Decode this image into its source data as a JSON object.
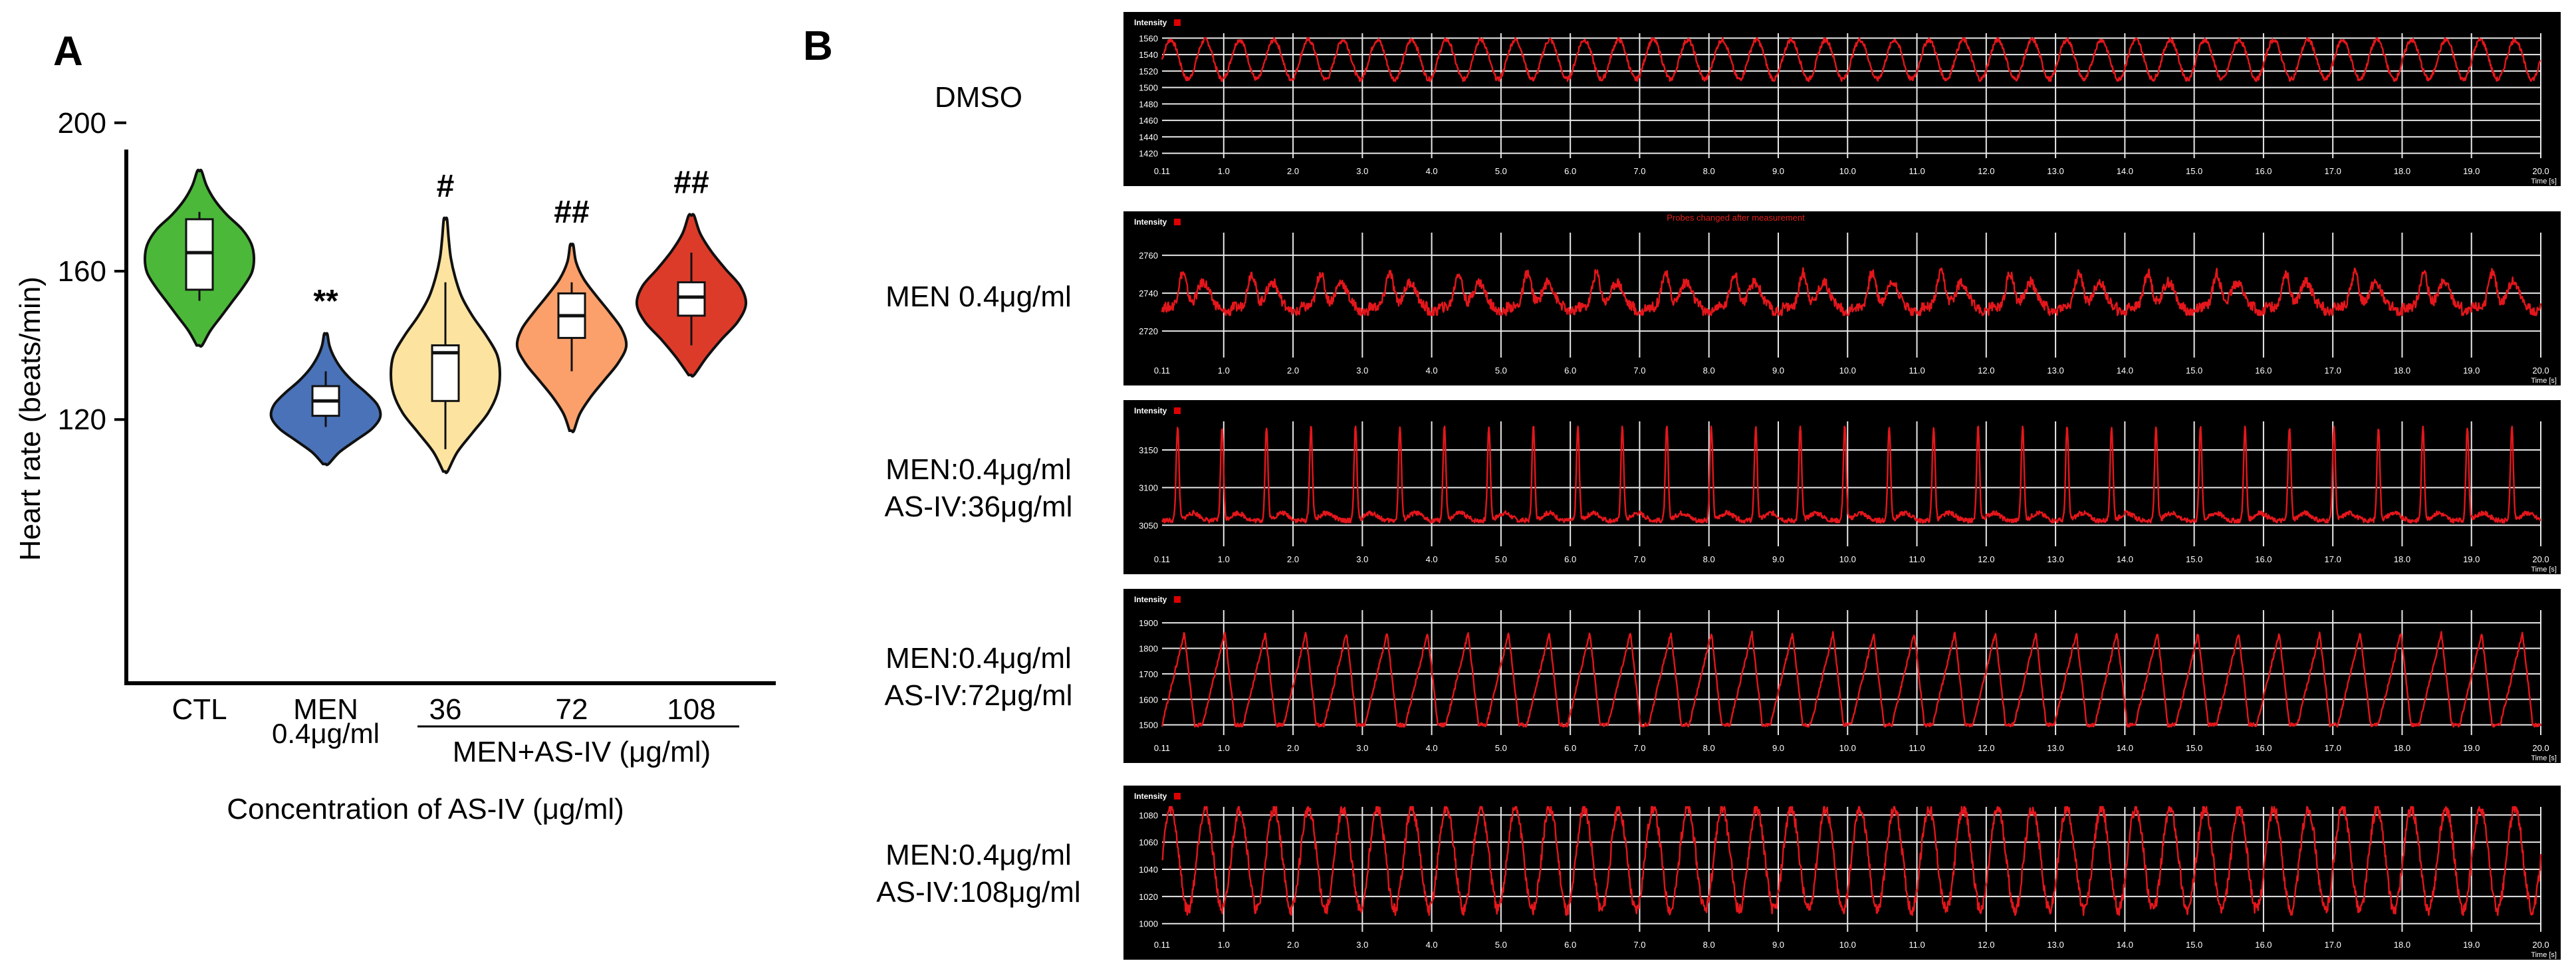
{
  "chart_data": [
    {
      "panel": "A",
      "type": "violin",
      "ylabel": "Heart rate (beats/min)",
      "xlabel": "Concentration of  AS-IV (μg/ml)",
      "ylim": [
        70,
        230
      ],
      "yticks": [
        120,
        160,
        200
      ],
      "group_bracket": "MEN+AS-IV (μg/ml)",
      "groups": [
        {
          "label": "CTL",
          "sublabel": "",
          "color": "#4bb83a",
          "sig": "",
          "min": 140,
          "max": 187,
          "q1": 155,
          "median": 165,
          "q3": 174,
          "wmin": 152,
          "wmax": 176,
          "profile": [
            0.05,
            0.2,
            0.4,
            0.6,
            0.8,
            0.96,
            1.0,
            0.95,
            0.78,
            0.5,
            0.28,
            0.13,
            0.04
          ]
        },
        {
          "label": "MEN",
          "sublabel": "0.4μg/ml",
          "color": "#4a72b8",
          "sig": "**",
          "min": 108,
          "max": 143,
          "q1": 121,
          "median": 125,
          "q3": 129,
          "wmin": 118,
          "wmax": 133,
          "profile": [
            0.05,
            0.25,
            0.55,
            0.85,
            1.0,
            0.95,
            0.75,
            0.5,
            0.3,
            0.16,
            0.07,
            0.03
          ]
        },
        {
          "label": "36",
          "sublabel": "",
          "color": "#fde3a0",
          "sig": "#",
          "min": 106,
          "max": 174,
          "q1": 125,
          "median": 138,
          "q3": 140,
          "wmin": 112,
          "wmax": 157,
          "profile": [
            0.04,
            0.22,
            0.5,
            0.78,
            0.95,
            1.0,
            0.95,
            0.75,
            0.5,
            0.3,
            0.18,
            0.1,
            0.06,
            0.03
          ]
        },
        {
          "label": "72",
          "sublabel": "",
          "color": "#fba06b",
          "sig": "##",
          "min": 117,
          "max": 167,
          "q1": 142,
          "median": 148,
          "q3": 154,
          "wmin": 133,
          "wmax": 157,
          "profile": [
            0.04,
            0.15,
            0.35,
            0.6,
            0.85,
            1.0,
            0.92,
            0.7,
            0.45,
            0.22,
            0.08,
            0.03
          ]
        },
        {
          "label": "108",
          "sublabel": "",
          "color": "#dd3b2a",
          "sig": "##",
          "min": 132,
          "max": 175,
          "q1": 148,
          "median": 153,
          "q3": 157,
          "wmin": 140,
          "wmax": 165,
          "profile": [
            0.05,
            0.28,
            0.55,
            0.85,
            1.0,
            0.9,
            0.62,
            0.36,
            0.16,
            0.05
          ]
        }
      ]
    },
    {
      "panel": "B",
      "type": "line",
      "xlabel": "Time [s]",
      "ylabel": "Intensity",
      "x_start_label": "0.11",
      "xticks": [
        "1.0",
        "2.0",
        "3.0",
        "4.0",
        "5.0",
        "6.0",
        "7.0",
        "8.0",
        "9.0",
        "10.0",
        "11.0",
        "12.0",
        "13.0",
        "14.0",
        "15.0",
        "16.0",
        "17.0",
        "18.0",
        "19.0",
        "20.0"
      ],
      "traces": [
        {
          "label": "DMSO",
          "beats": 40,
          "yticks": [
            "1560",
            "1540",
            "1520",
            "1500",
            "1480",
            "1460",
            "1440",
            "1420"
          ],
          "ylim": [
            1414,
            1566
          ],
          "baseline": 1510,
          "amplitude": 48,
          "style": "sine",
          "annotation": ""
        },
        {
          "label": "MEN 0.4μg/ml",
          "beats": 20,
          "yticks": [
            "2760",
            "2740",
            "2720"
          ],
          "ylim": [
            2706,
            2772
          ],
          "baseline": 2730,
          "amplitude": 33,
          "style": "spike",
          "annotation": "Probes changed after measurement"
        },
        {
          "label": "MEN:0.4μg/ml\nAS-IV:36μg/ml",
          "beats": 31,
          "yticks": [
            "3150",
            "3100",
            "3050"
          ],
          "ylim": [
            3022,
            3188
          ],
          "baseline": 3050,
          "amplitude": 125,
          "style": "sharp",
          "annotation": ""
        },
        {
          "label": "MEN:0.4μg/ml\nAS-IV:72μg/ml",
          "beats": 34,
          "yticks": [
            "1900",
            "1800",
            "1700",
            "1600",
            "1500"
          ],
          "ylim": [
            1460,
            1950
          ],
          "baseline": 1500,
          "amplitude": 380,
          "style": "saw",
          "annotation": ""
        },
        {
          "label": "MEN:0.4μg/ml\nAS-IV:108μg/ml",
          "beats": 40,
          "yticks": [
            "1080",
            "1060",
            "1040",
            "1020",
            "1000"
          ],
          "ylim": [
            994,
            1086
          ],
          "baseline": 1010,
          "amplitude": 75,
          "style": "sine",
          "annotation": ""
        }
      ]
    }
  ],
  "panel_labels": [
    "A",
    "B"
  ]
}
